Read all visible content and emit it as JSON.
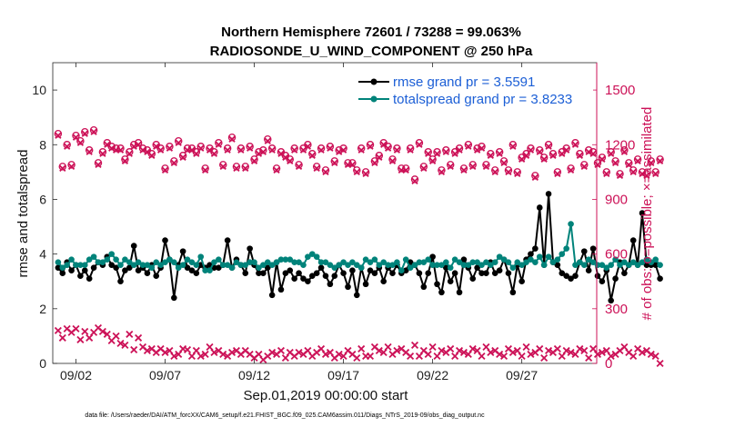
{
  "chart_data": {
    "type": "line",
    "title": "Northern Hemisphere 72601 / 73288 = 99.063%",
    "subtitle": "RADIOSONDE_U_WIND_COMPONENT @ 250 hPa",
    "xlabel": "Sep.01,2019 00:00:00 start",
    "ylabel": "rmse and totalspread",
    "ylabel_right": "# of obs: o=possible; ×=assimilated",
    "footnote": "data file: /Users/raeder/DAI/ATM_forcXX/CAM6_setup/f.e21.FHIST_BGC.f09_025.CAM6assim.011/Diags_NTrS_2019-09/obs_diag_output.nc",
    "xlim": [
      0.7,
      31.2
    ],
    "ylim": [
      0,
      11
    ],
    "ylim_right": [
      0,
      1650
    ],
    "x_ticks": [
      2,
      7,
      12,
      17,
      22,
      27
    ],
    "x_tick_labels": [
      "09/02",
      "09/07",
      "09/12",
      "09/17",
      "09/22",
      "09/27"
    ],
    "y_ticks": [
      0,
      2,
      4,
      6,
      8,
      10
    ],
    "y_tick_labels": [
      "0",
      "2",
      "4",
      "6",
      "8",
      "10"
    ],
    "y_ticks_right": [
      0,
      300,
      600,
      900,
      1200,
      1500
    ],
    "y_tick_labels_right": [
      "0",
      "300",
      "600",
      "900",
      "1200",
      "1500"
    ],
    "x_start": 1.0,
    "x_step": 0.25,
    "series": [
      {
        "name": "rmse grand pr = 3.5591",
        "color": "#000000",
        "axis": "left",
        "values": [
          3.5,
          3.3,
          3.7,
          3.4,
          3.6,
          3.2,
          3.4,
          3.1,
          3.5,
          3.7,
          3.6,
          3.9,
          3.6,
          3.5,
          3.0,
          3.4,
          3.5,
          4.3,
          3.4,
          3.5,
          3.3,
          3.6,
          3.2,
          3.5,
          4.5,
          3.8,
          2.4,
          3.6,
          4.1,
          3.5,
          3.4,
          3.3,
          3.6,
          3.5,
          3.6,
          3.5,
          3.5,
          3.6,
          4.5,
          3.5,
          3.8,
          3.6,
          3.3,
          4.2,
          3.6,
          3.3,
          3.3,
          3.5,
          2.5,
          3.7,
          2.7,
          3.3,
          3.4,
          3.1,
          3.3,
          3.1,
          3.0,
          3.2,
          3.3,
          3.5,
          3.2,
          2.9,
          3.2,
          3.6,
          3.3,
          2.8,
          3.4,
          2.5,
          3.5,
          2.9,
          3.4,
          3.3,
          3.5,
          3.0,
          3.5,
          3.3,
          3.6,
          3.3,
          3.4,
          3.7,
          3.6,
          3.3,
          2.8,
          3.3,
          3.9,
          2.9,
          2.6,
          3.5,
          3.0,
          3.3,
          2.6,
          3.8,
          3.5,
          3.1,
          3.5,
          3.3,
          3.3,
          3.7,
          3.3,
          3.4,
          3.8,
          3.3,
          2.6,
          3.6,
          3.0,
          3.8,
          4.0,
          4.2,
          5.7,
          3.6,
          6.2,
          3.7,
          3.6,
          3.3,
          3.2,
          3.1,
          3.2,
          3.7,
          4.1,
          3.4,
          4.2,
          3.2,
          3.0,
          3.4,
          2.3,
          3.1,
          3.7,
          3.3,
          3.6,
          4.5,
          3.6,
          5.5,
          3.6,
          3.6,
          3.6,
          3.1
        ]
      },
      {
        "name": "totalspread grand pr = 3.8233",
        "color": "#00837a",
        "axis": "left",
        "values": [
          3.7,
          3.5,
          3.6,
          3.8,
          3.6,
          3.6,
          3.6,
          3.8,
          3.9,
          3.7,
          3.7,
          3.8,
          4.0,
          3.8,
          3.6,
          3.8,
          3.7,
          3.6,
          3.7,
          3.6,
          3.6,
          3.5,
          3.7,
          3.6,
          3.7,
          3.8,
          3.7,
          3.5,
          3.6,
          3.8,
          3.7,
          3.6,
          3.9,
          3.4,
          3.4,
          3.7,
          3.8,
          3.6,
          3.6,
          3.5,
          3.7,
          3.6,
          3.6,
          3.7,
          3.7,
          3.5,
          3.6,
          3.7,
          3.6,
          3.7,
          3.8,
          3.8,
          3.8,
          3.7,
          3.7,
          3.6,
          3.9,
          4.0,
          3.9,
          3.7,
          3.7,
          3.6,
          3.5,
          3.6,
          3.7,
          3.6,
          3.7,
          3.6,
          3.5,
          3.8,
          3.7,
          3.8,
          3.6,
          3.7,
          3.6,
          3.6,
          3.7,
          3.4,
          3.8,
          3.5,
          3.6,
          3.7,
          3.7,
          3.8,
          3.6,
          3.6,
          3.6,
          3.7,
          3.5,
          3.8,
          3.7,
          3.6,
          3.6,
          3.7,
          3.7,
          3.6,
          3.7,
          3.6,
          3.7,
          3.9,
          3.8,
          3.7,
          3.5,
          3.7,
          3.6,
          3.7,
          3.8,
          3.7,
          3.9,
          3.6,
          3.9,
          3.7,
          3.8,
          4.0,
          4.2,
          5.1,
          3.6,
          3.7,
          3.6,
          3.8,
          3.7,
          3.6,
          3.6,
          3.5,
          3.6,
          3.8,
          3.6,
          3.7,
          3.6,
          3.7,
          3.6,
          3.7,
          3.8,
          3.7,
          3.8,
          3.6
        ]
      }
    ],
    "obs_possible": [
      1260,
      1080,
      1200,
      1090,
      1250,
      1220,
      1270,
      1170,
      1280,
      1100,
      1160,
      1210,
      1190,
      1180,
      1180,
      1120,
      1160,
      1200,
      1210,
      1180,
      1170,
      1150,
      1200,
      1180,
      1070,
      1190,
      1110,
      1220,
      1140,
      1180,
      1180,
      1160,
      1190,
      1070,
      1180,
      1160,
      1210,
      1090,
      1180,
      1240,
      1080,
      1180,
      1080,
      1190,
      1120,
      1160,
      1170,
      1230,
      1180,
      1070,
      1160,
      1140,
      1120,
      1180,
      1090,
      1180,
      1200,
      1150,
      1080,
      1180,
      1060,
      1190,
      1110,
      1170,
      1180,
      1100,
      1100,
      1060,
      1180,
      1050,
      1200,
      1110,
      1140,
      1210,
      1190,
      1120,
      1180,
      1070,
      1070,
      1180,
      1010,
      1210,
      1080,
      1160,
      1120,
      1160,
      1060,
      1170,
      1090,
      1160,
      1180,
      1070,
      1200,
      1090,
      1180,
      1190,
      1090,
      1150,
      1060,
      1160,
      1110,
      1060,
      1200,
      1050,
      1130,
      1150,
      1180,
      1030,
      1170,
      1130,
      1200,
      1150,
      1050,
      1160,
      1180,
      1070,
      1210,
      1150,
      1090,
      1170,
      1160,
      1100,
      1130,
      1050,
      1160,
      1110,
      1040,
      1170,
      1100,
      1060,
      1120,
      1050,
      1040,
      1110,
      1050,
      1120
    ],
    "obs_assimilated": [
      180,
      140,
      190,
      170,
      190,
      130,
      175,
      140,
      170,
      195,
      175,
      160,
      125,
      150,
      110,
      100,
      160,
      75,
      140,
      90,
      70,
      80,
      60,
      80,
      60,
      70,
      40,
      50,
      80,
      75,
      40,
      70,
      40,
      50,
      90,
      60,
      70,
      50,
      40,
      60,
      70,
      50,
      70,
      50,
      30,
      50,
      20,
      40,
      60,
      50,
      70,
      30,
      60,
      40,
      60,
      50,
      70,
      40,
      60,
      80,
      50,
      60,
      30,
      50,
      40,
      70,
      50,
      30,
      80,
      40,
      40,
      90,
      70,
      60,
      90,
      50,
      70,
      80,
      60,
      40,
      100,
      40,
      70,
      50,
      90,
      40,
      70,
      60,
      80,
      40,
      70,
      60,
      50,
      80,
      70,
      40,
      90,
      60,
      70,
      50,
      40,
      80,
      60,
      70,
      40,
      90,
      50,
      60,
      80,
      30,
      70,
      60,
      80,
      40,
      70,
      60,
      50,
      80,
      70,
      30,
      80,
      50,
      60,
      70,
      40,
      50,
      70,
      90,
      60,
      40,
      80,
      60,
      70,
      50,
      40,
      0
    ],
    "obs_color": "#cc1157",
    "legend_position": "top-right"
  }
}
